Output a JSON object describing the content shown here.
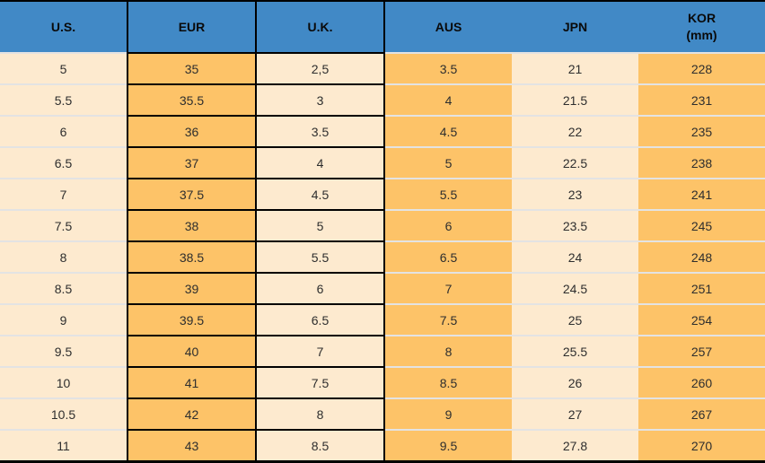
{
  "table": {
    "title": "shoe-size-conversion-table",
    "columns": [
      {
        "key": "us",
        "label": "U.S."
      },
      {
        "key": "eur",
        "label": "EUR"
      },
      {
        "key": "uk",
        "label": "U.K."
      },
      {
        "key": "aus",
        "label": "AUS"
      },
      {
        "key": "jpn",
        "label": "JPN"
      },
      {
        "key": "kor",
        "label": "KOR",
        "label2": "(mm)"
      }
    ],
    "rows": [
      [
        "5",
        "35",
        "2,5",
        "3.5",
        "21",
        "228"
      ],
      [
        "5.5",
        "35.5",
        "3",
        "4",
        "21.5",
        "231"
      ],
      [
        "6",
        "36",
        "3.5",
        "4.5",
        "22",
        "235"
      ],
      [
        "6.5",
        "37",
        "4",
        "5",
        "22.5",
        "238"
      ],
      [
        "7",
        "37.5",
        "4.5",
        "5.5",
        "23",
        "241"
      ],
      [
        "7.5",
        "38",
        "5",
        "6",
        "23.5",
        "245"
      ],
      [
        "8",
        "38.5",
        "5.5",
        "6.5",
        "24",
        "248"
      ],
      [
        "8.5",
        "39",
        "6",
        "7",
        "24.5",
        "251"
      ],
      [
        "9",
        "39.5",
        "6.5",
        "7.5",
        "25",
        "254"
      ],
      [
        "9.5",
        "40",
        "7",
        "8",
        "25.5",
        "257"
      ],
      [
        "10",
        "41",
        "7.5",
        "8.5",
        "26",
        "260"
      ],
      [
        "10.5",
        "42",
        "8",
        "9",
        "27",
        "267"
      ],
      [
        "11",
        "43",
        "8.5",
        "9.5",
        "27.8",
        "270"
      ]
    ]
  },
  "colors": {
    "header_blue": "#4189c6",
    "cell_orange": "#fdc368",
    "cell_cream": "#fdeacf",
    "row_separator": "#e3e3e3",
    "box_border": "#000000",
    "header_text": "#0a0a0a",
    "body_text": "#2e2e2e"
  }
}
